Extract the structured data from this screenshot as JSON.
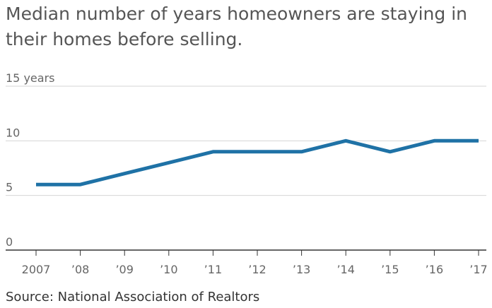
{
  "chart_data": {
    "type": "line",
    "title": "Median number of years homeowners are staying in their homes before selling.",
    "source": "Source: National Association of Realtors",
    "x": [
      2007,
      2008,
      2009,
      2010,
      2011,
      2012,
      2013,
      2014,
      2015,
      2016,
      2017
    ],
    "x_tick_labels": [
      "2007",
      "’08",
      "’09",
      "’10",
      "’11",
      "’12",
      "’13",
      "’14",
      "’15",
      "’16",
      "’17"
    ],
    "y_ticks": [
      0,
      5,
      10,
      15
    ],
    "y_tick_labels": [
      "0",
      "5",
      "10",
      "15 years"
    ],
    "ylim": [
      0,
      15
    ],
    "grid": true,
    "series": [
      {
        "values": [
          6,
          6,
          7,
          8,
          9,
          9,
          9,
          10,
          9,
          10,
          10
        ],
        "color": "#1f72a6"
      }
    ]
  }
}
